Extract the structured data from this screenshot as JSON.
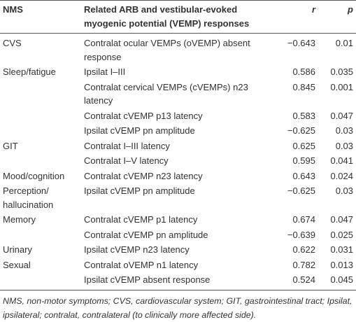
{
  "table": {
    "header": [
      "NMS",
      "Related ARB and vestibular-evoked myogenic potential (VEMP) responses",
      "r",
      "p"
    ],
    "rows": [
      [
        "CVS",
        "Contralat ocular VEMPs (oVEMP) absent response",
        "−0.643",
        "0.01"
      ],
      [
        "Sleep/fatigue",
        "Ipsilat I–III",
        "0.586",
        "0.035"
      ],
      [
        null,
        "Contralat cervical VEMPs (cVEMPs) n23 latency",
        "0.845",
        "0.001"
      ],
      [
        null,
        "Contralat cVEMP p13 latency",
        "0.583",
        "0.047"
      ],
      [
        null,
        "Ipsilat cVEMP pn amplitude",
        "−0.625",
        "0.03"
      ],
      [
        "GIT",
        "Contralat I–III latency",
        "0.625",
        "0.03"
      ],
      [
        null,
        "Contralat I–V latency",
        "0.595",
        "0.041"
      ],
      [
        "Mood/cognition",
        "Contralat cVEMP n23 latency",
        "0.643",
        "0.024"
      ],
      [
        "Perception/ hallucination",
        "Ipsilat cVEMP pn amplitude",
        "−0.625",
        "0.03"
      ],
      [
        "Memory",
        "Contralat cVEMP p1 latency",
        "0.674",
        "0.047"
      ],
      [
        null,
        "Contralat cVEMP pn amplitude",
        "−0.639",
        "0.025"
      ],
      [
        "Urinary",
        "Ipsilat cVEMP n23 latency",
        "0.622",
        "0.031"
      ],
      [
        "Sexual",
        "Contralat oVEMP n1 latency",
        "0.782",
        "0.013"
      ],
      [
        null,
        "Ipsilat cVEMP absent response",
        "0.524",
        "0.045"
      ]
    ],
    "footnote": "NMS, non-motor symptoms; CVS, cardiovascular system; GIT, gastrointestinal tract; Ipsilat, ipsilateral; contralat, contralateral (to clinically more affected side)."
  }
}
